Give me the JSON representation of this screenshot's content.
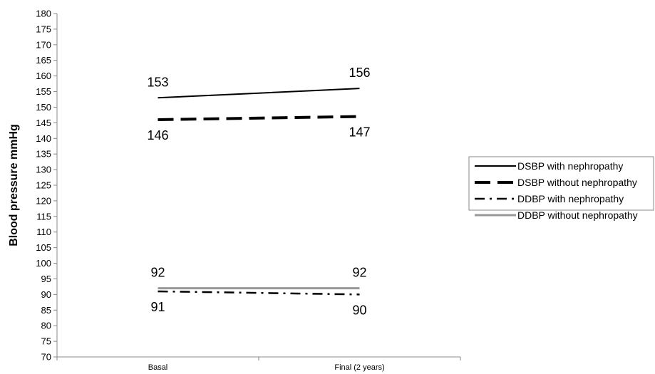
{
  "chart_data": {
    "type": "line",
    "title": "",
    "xlabel": "",
    "ylabel": "Blood pressure mmHg",
    "ylim": [
      70,
      180
    ],
    "ytick_step": 5,
    "grid": false,
    "legend_position": "right",
    "categories": [
      "Basal",
      "Final (2 years)"
    ],
    "series": [
      {
        "name": "DSBP with nephropathy",
        "values": [
          153,
          156
        ],
        "style": "solid",
        "color": "#000000",
        "labels_above": true
      },
      {
        "name": "DSBP without nephropathy",
        "values": [
          146,
          147
        ],
        "style": "long-dash",
        "color": "#000000",
        "labels_above": false
      },
      {
        "name": "DDBP with nephropathy",
        "values": [
          91,
          90
        ],
        "style": "dash-dot",
        "color": "#000000",
        "labels_above": false
      },
      {
        "name": "DDBP without nephropathy",
        "values": [
          92,
          92
        ],
        "style": "solid-gray",
        "color": "#999999",
        "labels_above": true
      }
    ]
  }
}
